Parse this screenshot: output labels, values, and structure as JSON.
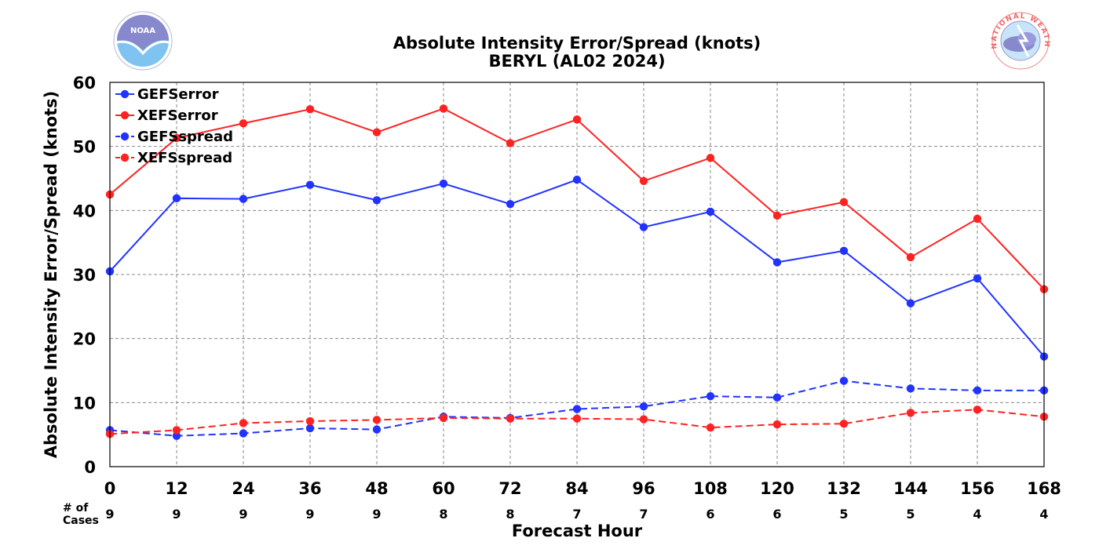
{
  "chart_data": {
    "type": "line",
    "title": "Absolute Intensity Error/Spread (knots)",
    "subtitle": "BERYL (AL02 2024)",
    "xlabel": "Forecast Hour",
    "ylabel": "Absolute Intensity Error/Spread (knots)",
    "xlim": [
      0,
      168
    ],
    "ylim": [
      0,
      60
    ],
    "x": [
      0,
      12,
      24,
      36,
      48,
      60,
      72,
      84,
      96,
      108,
      120,
      132,
      144,
      156,
      168
    ],
    "yticks": [
      0,
      10,
      20,
      30,
      40,
      50,
      60
    ],
    "grid": true,
    "legend_position": "top-left",
    "cases_label_line1": "# of",
    "cases_label_line2": "Cases",
    "cases": [
      9,
      9,
      9,
      9,
      9,
      8,
      8,
      7,
      7,
      6,
      6,
      5,
      5,
      4,
      4
    ],
    "series": [
      {
        "name": "GEFSerror",
        "color": "#2233ff",
        "dash": false,
        "values": [
          30.5,
          41.9,
          41.8,
          44.0,
          41.6,
          44.2,
          41.0,
          44.8,
          37.4,
          39.8,
          31.9,
          33.7,
          25.5,
          29.4,
          17.2
        ]
      },
      {
        "name": "XEFSerror",
        "color": "#ff2222",
        "dash": false,
        "values": [
          42.5,
          51.3,
          53.6,
          55.8,
          52.2,
          55.9,
          50.5,
          54.2,
          44.6,
          48.2,
          39.2,
          41.3,
          32.7,
          38.7,
          27.7
        ]
      },
      {
        "name": "GEFSspread",
        "color": "#2233ff",
        "dash": true,
        "values": [
          5.7,
          4.8,
          5.2,
          6.0,
          5.8,
          7.8,
          7.6,
          9.0,
          9.4,
          11.0,
          10.8,
          13.4,
          12.2,
          11.9,
          11.9
        ]
      },
      {
        "name": "XEFSspread",
        "color": "#ff2222",
        "dash": true,
        "values": [
          5.1,
          5.7,
          6.8,
          7.1,
          7.3,
          7.6,
          7.5,
          7.5,
          7.4,
          6.1,
          6.6,
          6.7,
          8.4,
          8.9,
          7.8
        ]
      }
    ]
  },
  "logos": {
    "left": {
      "name": "noaa-logo",
      "text": "NOAA"
    },
    "right": {
      "name": "nws-logo",
      "text": "NATIONAL WEATHER SERVICE"
    }
  }
}
